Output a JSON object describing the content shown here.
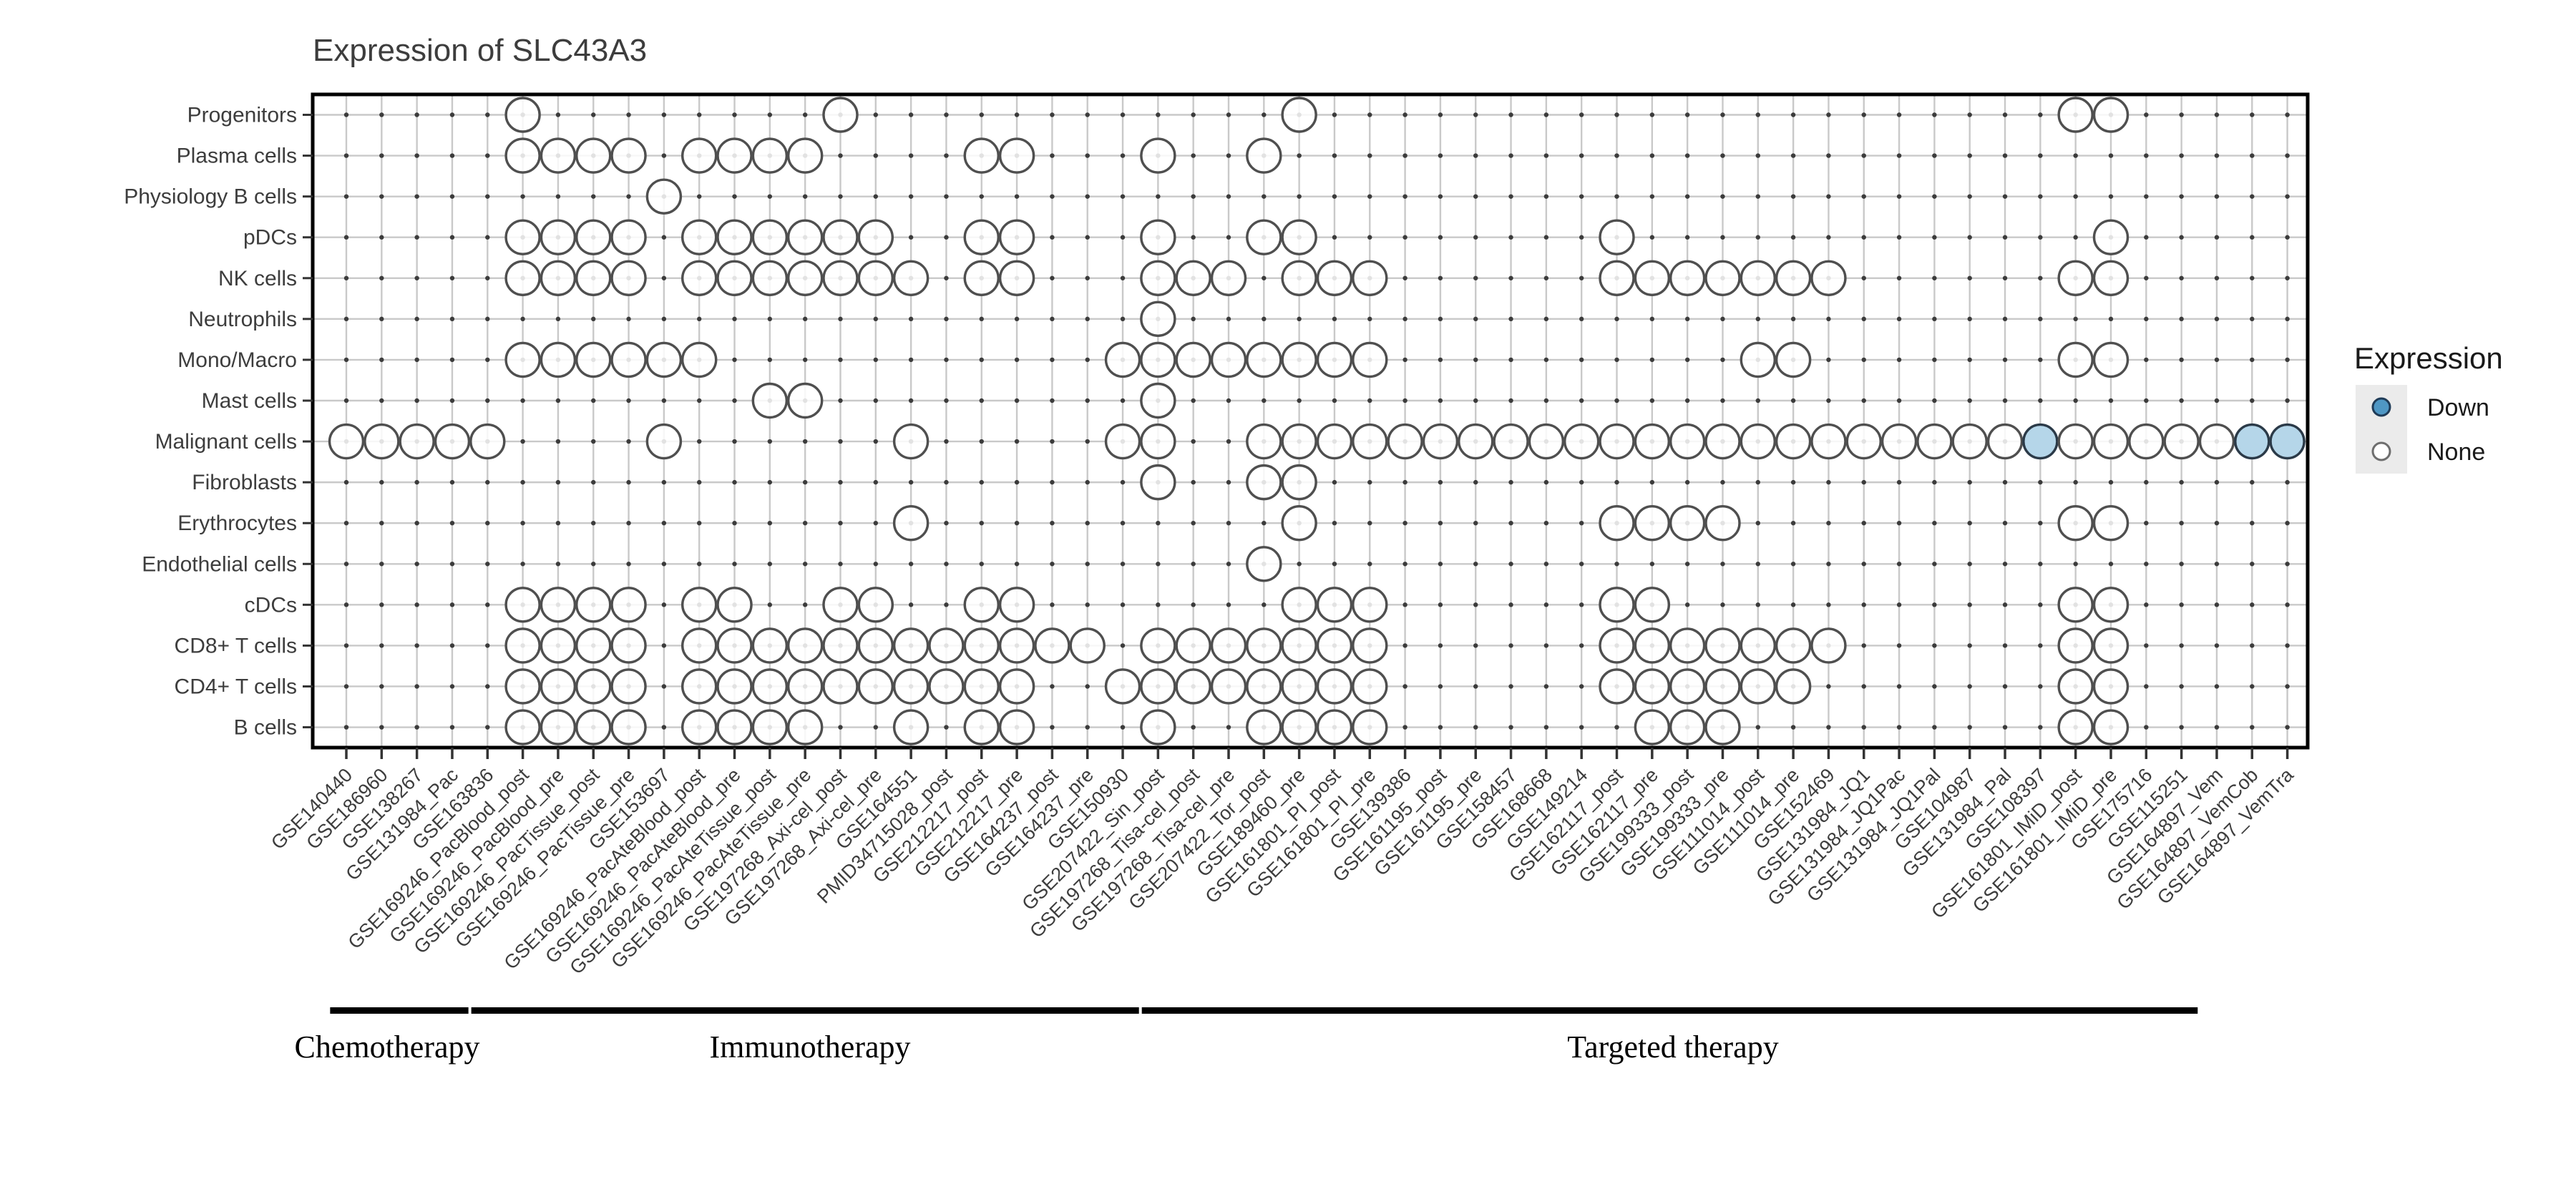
{
  "title": "Expression of SLC43A3",
  "legend": {
    "title": "Expression",
    "items": [
      {
        "label": "Down",
        "fill": "#4f97c4",
        "stroke": "#1f3b57"
      },
      {
        "label": "None",
        "fill": "#ffffff",
        "stroke": "#6e6e6e"
      }
    ]
  },
  "therapy_groups": [
    {
      "label": "Chemotherapy",
      "col_start": 1,
      "col_end": 4
    },
    {
      "label": "Immunotherapy",
      "col_start": 5,
      "col_end": 23
    },
    {
      "label": "Targeted therapy",
      "col_start": 24,
      "col_end": 53
    }
  ],
  "colors": {
    "grid": "#c9c9c9",
    "intersection_dot": "#3c3c3c",
    "plot_border": "#000000",
    "circle_stroke": "#4f4f4f",
    "circle_fill": "#ffffff",
    "down_fill": "#b5d6e9",
    "down_stroke": "#2b3a48",
    "axis_text": "#3d3d3d",
    "title_text": "#1a1a1a",
    "legend_key_bg": "#ebebeb",
    "bracket": "#000000"
  },
  "chart_data": {
    "type": "scatter",
    "subtype": "dot-matrix-presence",
    "title": "Expression of SLC43A3",
    "legend_title": "Expression",
    "legend_entries": [
      "Down",
      "None"
    ],
    "legend_position": "right",
    "grid": "on",
    "x_categories": [
      "GSE140440",
      "GSE186960",
      "GSE138267",
      "GSE131984_Pac",
      "GSE163836",
      "GSE169246_PacBlood_post",
      "GSE169246_PacBlood_pre",
      "GSE169246_PacTissue_post",
      "GSE169246_PacTissue_pre",
      "GSE153697",
      "GSE169246_PacAteBlood_post",
      "GSE169246_PacAteBlood_pre",
      "GSE169246_PacAteTissue_post",
      "GSE169246_PacAteTissue_pre",
      "GSE197268_Axi-cel_post",
      "GSE197268_Axi-cel_pre",
      "GSE164551",
      "PMID34715028_post",
      "GSE212217_post",
      "GSE212217_pre",
      "GSE164237_post",
      "GSE164237_pre",
      "GSE150930",
      "GSE207422_Sin_post",
      "GSE197268_Tisa-cel_post",
      "GSE197268_Tisa-cel_pre",
      "GSE207422_Tor_post",
      "GSE189460_pre",
      "GSE161801_PI_post",
      "GSE161801_PI_pre",
      "GSE139386",
      "GSE161195_post",
      "GSE161195_pre",
      "GSE158457",
      "GSE168668",
      "GSE149214",
      "GSE162117_post",
      "GSE162117_pre",
      "GSE199333_post",
      "GSE199333_pre",
      "GSE111014_post",
      "GSE111014_pre",
      "GSE152469",
      "GSE131984_JQ1",
      "GSE131984_JQ1Pac",
      "GSE131984_JQ1Pal",
      "GSE104987",
      "GSE131984_Pal",
      "GSE108397",
      "GSE161801_IMiD_post",
      "GSE161801_IMiD_pre",
      "GSE175716",
      "GSE115251",
      "GSE164897_Vem",
      "GSE164897_VemCob",
      "GSE164897_VemTra"
    ],
    "y_categories": [
      "Progenitors",
      "Plasma cells",
      "Physiology B cells",
      "pDCs",
      "NK cells",
      "Neutrophils",
      "Mono/Macro",
      "Mast cells",
      "Malignant cells",
      "Fibroblasts",
      "Erythrocytes",
      "Endothelial cells",
      "cDCs",
      "CD8+ T cells",
      "CD4+ T cells",
      "B cells"
    ],
    "presence_by_row": {
      "Progenitors": [
        6,
        15,
        28,
        50,
        51
      ],
      "Plasma cells": [
        6,
        7,
        8,
        9,
        11,
        12,
        13,
        14,
        19,
        20,
        24,
        27
      ],
      "Physiology B cells": [
        10
      ],
      "pDCs": [
        6,
        7,
        8,
        9,
        11,
        12,
        13,
        14,
        15,
        16,
        19,
        20,
        24,
        27,
        28,
        37,
        51
      ],
      "NK cells": [
        6,
        7,
        8,
        9,
        11,
        12,
        13,
        14,
        15,
        16,
        17,
        19,
        20,
        24,
        25,
        26,
        28,
        29,
        30,
        37,
        38,
        39,
        40,
        41,
        42,
        43,
        50,
        51
      ],
      "Neutrophils": [
        24
      ],
      "Mono/Macro": [
        6,
        7,
        8,
        9,
        10,
        11,
        23,
        24,
        25,
        26,
        27,
        28,
        29,
        30,
        41,
        42,
        50,
        51
      ],
      "Mast cells": [
        13,
        14,
        24
      ],
      "Malignant cells": [
        1,
        2,
        3,
        4,
        5,
        10,
        17,
        23,
        24,
        27,
        28,
        29,
        30,
        31,
        32,
        33,
        34,
        35,
        36,
        37,
        38,
        39,
        40,
        41,
        42,
        43,
        44,
        45,
        46,
        47,
        48,
        49,
        50,
        51,
        52,
        53,
        54,
        55,
        56
      ],
      "Fibroblasts": [
        24,
        27,
        28
      ],
      "Erythrocytes": [
        17,
        28,
        37,
        38,
        39,
        40,
        50,
        51
      ],
      "Endothelial cells": [
        27
      ],
      "cDCs": [
        6,
        7,
        8,
        9,
        11,
        12,
        15,
        16,
        19,
        20,
        28,
        29,
        30,
        37,
        38,
        50,
        51
      ],
      "CD8+ T cells": [
        6,
        7,
        8,
        9,
        11,
        12,
        13,
        14,
        15,
        16,
        17,
        18,
        19,
        20,
        21,
        22,
        24,
        25,
        26,
        27,
        28,
        29,
        30,
        37,
        38,
        39,
        40,
        41,
        42,
        43,
        50,
        51
      ],
      "CD4+ T cells": [
        6,
        7,
        8,
        9,
        11,
        12,
        13,
        14,
        15,
        16,
        17,
        18,
        19,
        20,
        23,
        24,
        25,
        26,
        27,
        28,
        29,
        30,
        37,
        38,
        39,
        40,
        41,
        42,
        50,
        51
      ],
      "B cells": [
        6,
        7,
        8,
        9,
        11,
        12,
        13,
        14,
        17,
        19,
        20,
        24,
        27,
        28,
        29,
        30,
        38,
        39,
        40,
        50,
        51
      ]
    },
    "down_by_row": {
      "Malignant cells": [
        49,
        55,
        56
      ]
    }
  }
}
